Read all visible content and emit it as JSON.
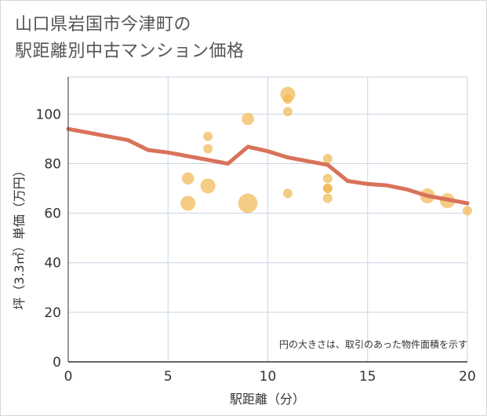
{
  "title_line1": "山口県岩国市今津町の",
  "title_line2": "駅距離別中古マンション価格",
  "chart_data": {
    "type": "scatter",
    "xlabel": "駅距離（分）",
    "ylabel": "坪（3.3㎡）単価（万円）",
    "xlim": [
      0,
      20
    ],
    "ylim": [
      0,
      115
    ],
    "xticks": [
      0,
      5,
      10,
      15,
      20
    ],
    "yticks": [
      0,
      20,
      40,
      60,
      80,
      100
    ],
    "grid": true,
    "note": "円の大きさは、取引のあった物件面積を示す",
    "scatter": [
      {
        "x": 6,
        "y": 74,
        "size": 2
      },
      {
        "x": 6,
        "y": 64,
        "size": 3
      },
      {
        "x": 7,
        "y": 91,
        "size": 1
      },
      {
        "x": 7,
        "y": 86,
        "size": 1
      },
      {
        "x": 7,
        "y": 71,
        "size": 3
      },
      {
        "x": 9,
        "y": 98,
        "size": 2
      },
      {
        "x": 9,
        "y": 64,
        "size": 5
      },
      {
        "x": 11,
        "y": 108,
        "size": 3
      },
      {
        "x": 11,
        "y": 106,
        "size": 1
      },
      {
        "x": 11,
        "y": 101,
        "size": 1
      },
      {
        "x": 11,
        "y": 68,
        "size": 1
      },
      {
        "x": 13,
        "y": 82,
        "size": 1
      },
      {
        "x": 13,
        "y": 74,
        "size": 1
      },
      {
        "x": 13,
        "y": 70,
        "size": 1
      },
      {
        "x": 13,
        "y": 70,
        "size": 1
      },
      {
        "x": 13,
        "y": 66,
        "size": 1
      },
      {
        "x": 18,
        "y": 67,
        "size": 3
      },
      {
        "x": 19,
        "y": 65,
        "size": 3
      },
      {
        "x": 20,
        "y": 61,
        "size": 1
      }
    ],
    "line": {
      "x": [
        0,
        1,
        2,
        3,
        4,
        5,
        6,
        7,
        8,
        9,
        10,
        11,
        12,
        13,
        14,
        15,
        16,
        17,
        18,
        19,
        20
      ],
      "y": [
        94,
        92.5,
        91,
        89.5,
        85.5,
        84.5,
        83,
        81.5,
        80,
        86.8,
        85,
        82.5,
        81,
        79.5,
        73,
        71.8,
        71.2,
        69.5,
        67,
        65.5,
        64
      ]
    },
    "colors": {
      "bubble": "#f1b955",
      "line": "#d9725a",
      "grid": "#c9d6e3"
    }
  }
}
